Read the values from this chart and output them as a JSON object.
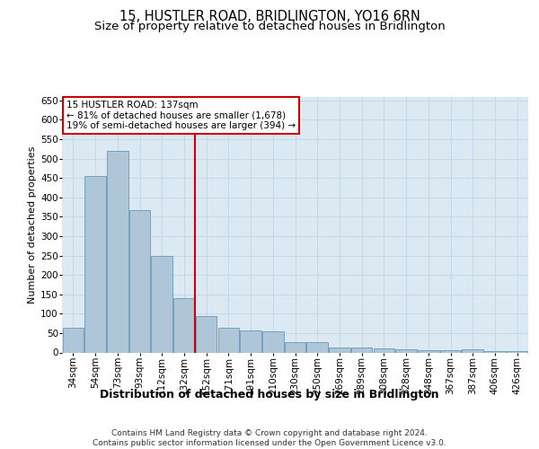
{
  "title": "15, HUSTLER ROAD, BRIDLINGTON, YO16 6RN",
  "subtitle": "Size of property relative to detached houses in Bridlington",
  "xlabel": "Distribution of detached houses by size in Bridlington",
  "ylabel": "Number of detached properties",
  "categories": [
    "34sqm",
    "54sqm",
    "73sqm",
    "93sqm",
    "112sqm",
    "132sqm",
    "152sqm",
    "171sqm",
    "191sqm",
    "210sqm",
    "230sqm",
    "250sqm",
    "269sqm",
    "289sqm",
    "308sqm",
    "328sqm",
    "348sqm",
    "367sqm",
    "387sqm",
    "406sqm",
    "426sqm"
  ],
  "values": [
    63,
    455,
    520,
    368,
    248,
    140,
    93,
    63,
    57,
    55,
    27,
    27,
    12,
    12,
    10,
    8,
    6,
    5,
    7,
    4,
    4
  ],
  "bar_color": "#aec6d8",
  "bar_edge_color": "#6699bb",
  "grid_color": "#c5d8e8",
  "background_color": "#dce8f2",
  "annotation_text": "15 HUSTLER ROAD: 137sqm\n← 81% of detached houses are smaller (1,678)\n19% of semi-detached houses are larger (394) →",
  "annotation_box_color": "#ffffff",
  "annotation_box_edge": "#cc0000",
  "vline_color": "#cc0000",
  "ylim": [
    0,
    660
  ],
  "yticks": [
    0,
    50,
    100,
    150,
    200,
    250,
    300,
    350,
    400,
    450,
    500,
    550,
    600,
    650
  ],
  "footer": "Contains HM Land Registry data © Crown copyright and database right 2024.\nContains public sector information licensed under the Open Government Licence v3.0.",
  "title_fontsize": 10.5,
  "subtitle_fontsize": 9.5,
  "xlabel_fontsize": 9,
  "ylabel_fontsize": 8,
  "tick_fontsize": 7.5,
  "annotation_fontsize": 7.5,
  "footer_fontsize": 6.5
}
